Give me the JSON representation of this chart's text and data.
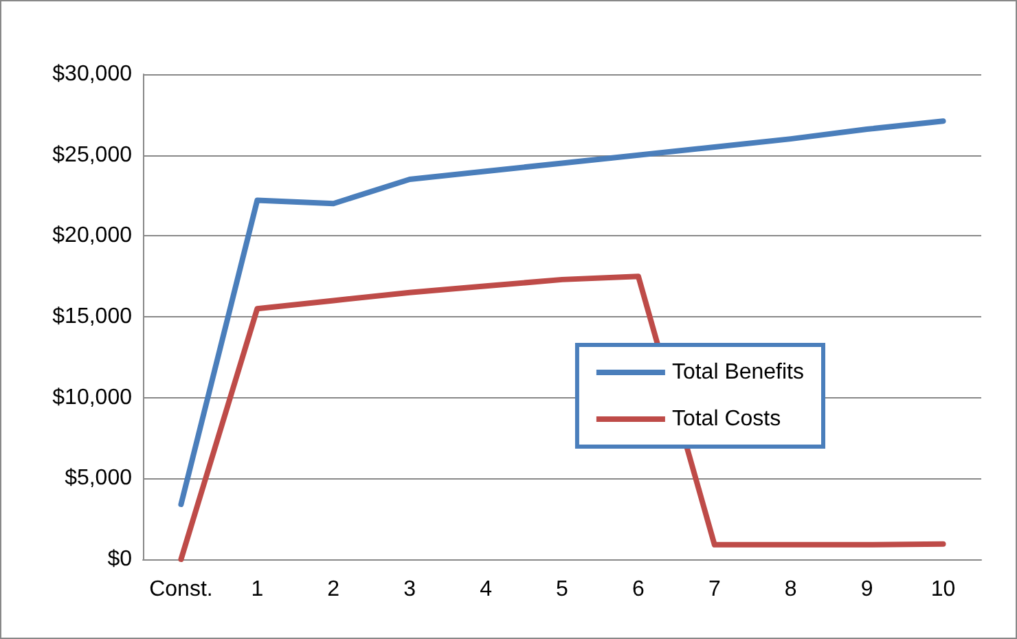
{
  "chart_data": {
    "type": "line",
    "categories": [
      "Const.",
      "1",
      "2",
      "3",
      "4",
      "5",
      "6",
      "7",
      "8",
      "9",
      "10"
    ],
    "series": [
      {
        "name": "Total Benefits",
        "color": "#4a7ebb",
        "values": [
          3400,
          22200,
          22000,
          23500,
          24000,
          24500,
          25000,
          25500,
          26000,
          26600,
          27100
        ]
      },
      {
        "name": "Total Costs",
        "color": "#be4b48",
        "values": [
          0,
          15500,
          16000,
          16500,
          16900,
          17300,
          17500,
          900,
          900,
          900,
          950
        ]
      }
    ],
    "ylim": [
      0,
      30000
    ],
    "yticks": [
      {
        "value": 0,
        "label": "$0"
      },
      {
        "value": 5000,
        "label": "$5,000"
      },
      {
        "value": 10000,
        "label": "$10,000"
      },
      {
        "value": 15000,
        "label": "$15,000"
      },
      {
        "value": 20000,
        "label": "$20,000"
      },
      {
        "value": 25000,
        "label": "$25,000"
      },
      {
        "value": 30000,
        "label": "$30,000"
      }
    ],
    "grid": "y",
    "legend": "right",
    "marker": "none",
    "line_style": "solid"
  }
}
